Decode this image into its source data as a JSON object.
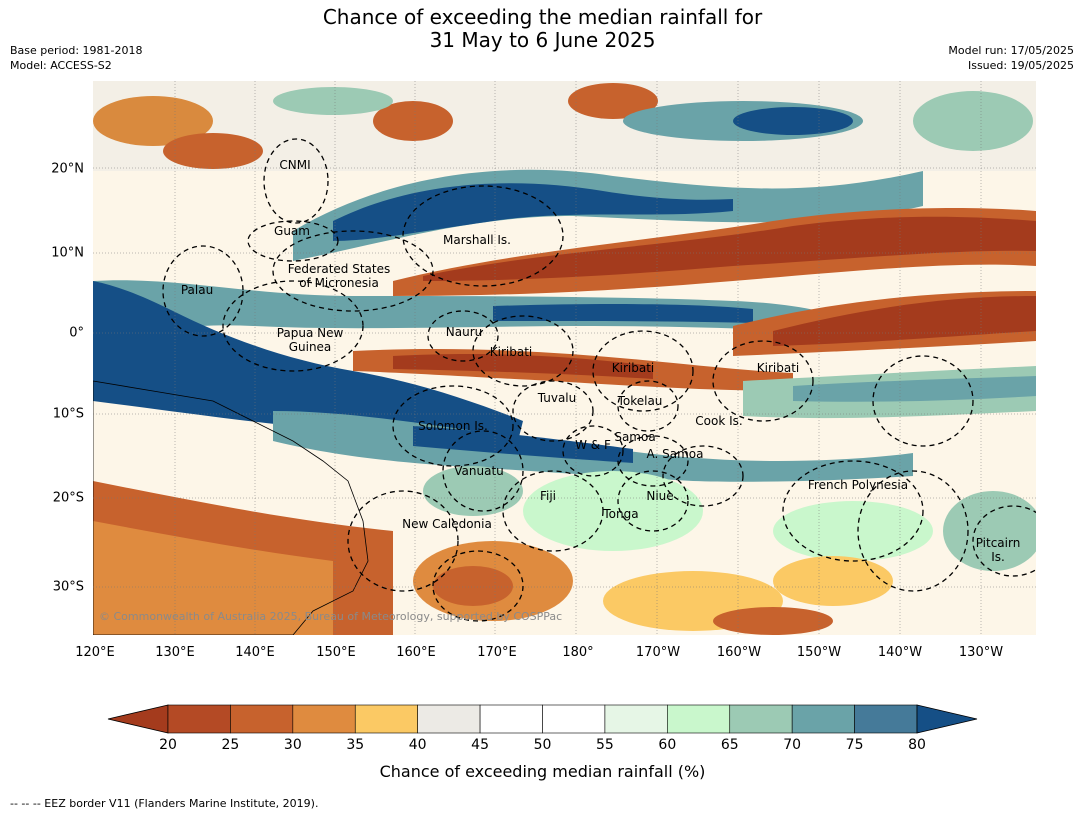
{
  "title_line1": "Chance of exceeding the median rainfall for",
  "title_line2": "31 May to 6 June 2025",
  "meta_left": [
    "Base period: 1981-2018",
    "Model: ACCESS-S2"
  ],
  "meta_right": [
    "Model run: 17/05/2025",
    "Issued: 19/05/2025"
  ],
  "lat_labels": [
    "20°N",
    "10°N",
    "0°",
    "10°S",
    "20°S",
    "30°S"
  ],
  "lon_labels": [
    "120°E",
    "130°E",
    "140°E",
    "150°E",
    "160°E",
    "170°E",
    "180°",
    "170°W",
    "160°W",
    "150°W",
    "140°W",
    "130°W"
  ],
  "regions": [
    "CNMI",
    "Guam",
    "Marshall Is.",
    "Federated States",
    "of Micronesia",
    "Palau",
    "Nauru",
    "Papua New",
    "Guinea",
    "Kiribati",
    "Kiribati",
    "Kiribati",
    "Tuvalu",
    "Tokelau",
    "Cook Is.",
    "Solomon Is.",
    "W & F",
    "Samoa",
    "A. Samoa",
    "Vanuatu",
    "Fiji",
    "Niue",
    "Tonga",
    "French Polynesia",
    "New Caledonia",
    "Pitcairn",
    "Is."
  ],
  "copyright": "© Commonwealth of Australia 2025, Bureau of Meteorology, supported by COSPPac",
  "colorbar": {
    "ticks": [
      "20",
      "25",
      "30",
      "35",
      "40",
      "45",
      "50",
      "55",
      "60",
      "65",
      "70",
      "75",
      "80"
    ],
    "colors": [
      "#a43b1d",
      "#b44a25",
      "#c7622d",
      "#df8b3f",
      "#fbc964",
      "#eceae5",
      "#ffffff",
      "#ffffff",
      "#e6f6e6",
      "#c9f7cc",
      "#9ccab4",
      "#6aa3a8",
      "#457a99",
      "#154f86"
    ],
    "title": "Chance of exceeding median rainfall (%)"
  },
  "footnote": "--  --  -- EEZ border V11 (Flanders Marine Institute, 2019)."
}
